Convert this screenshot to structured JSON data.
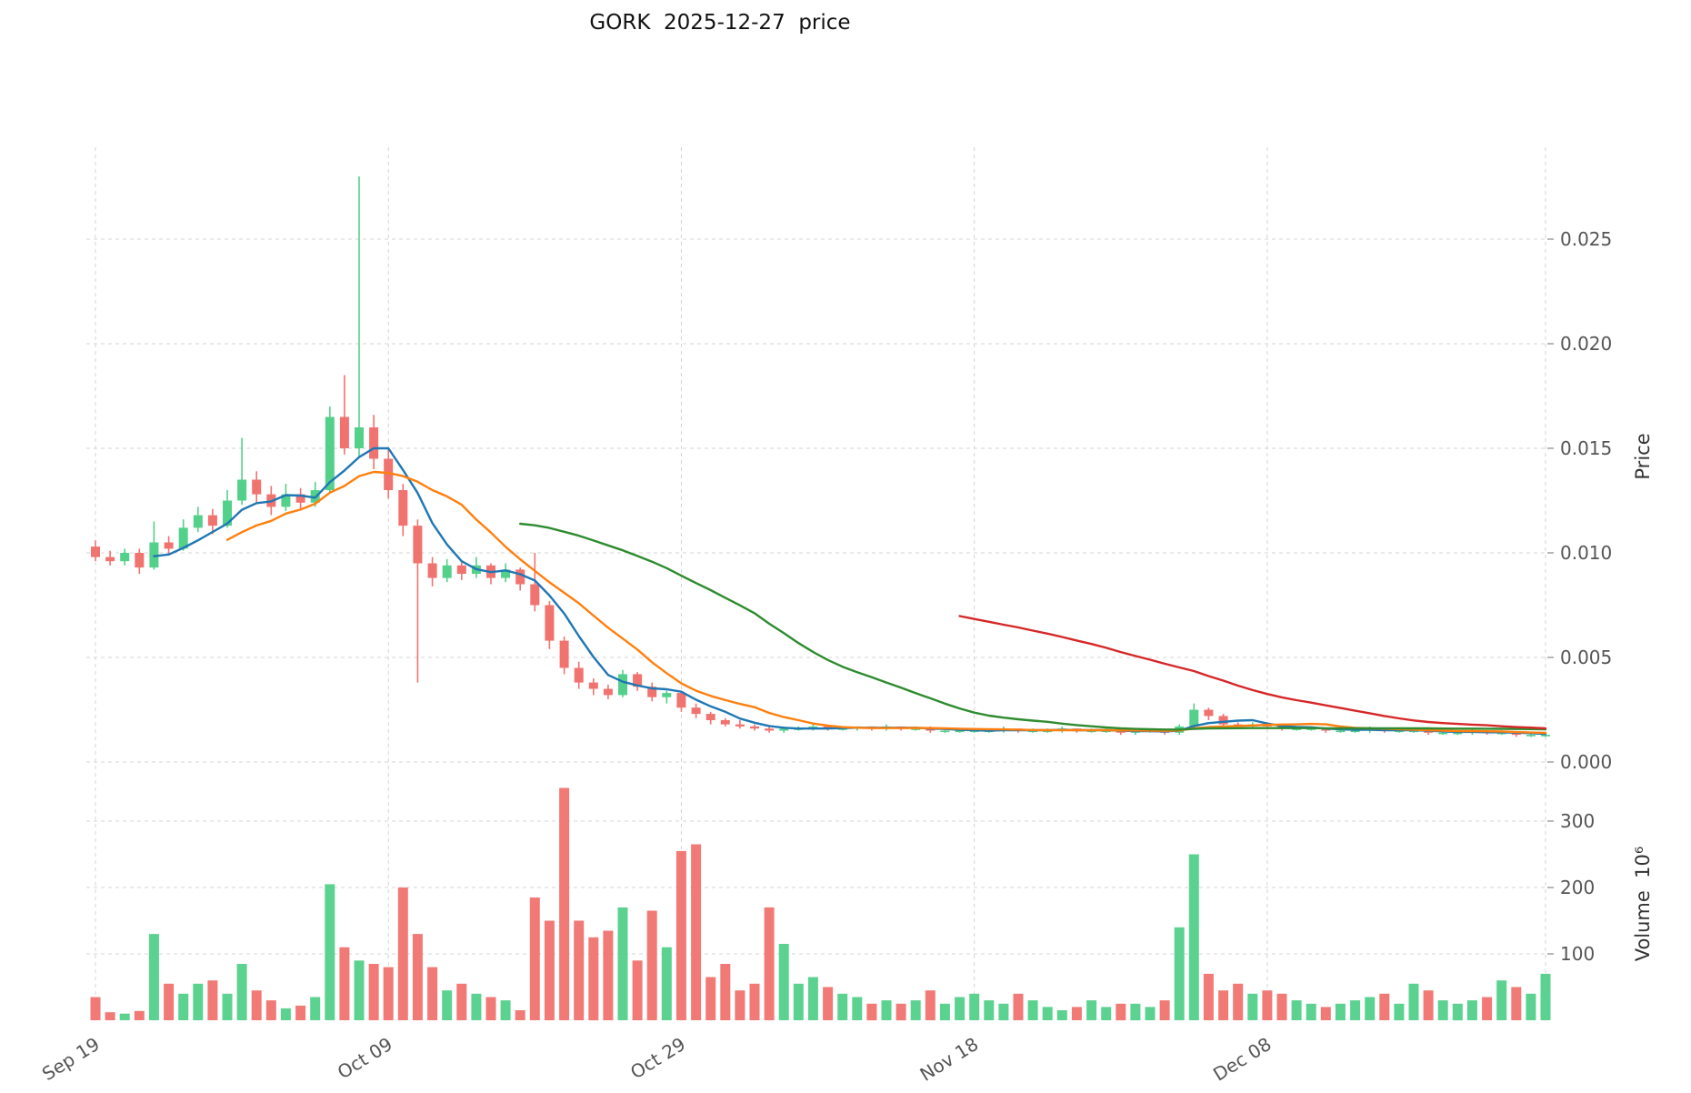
{
  "chart_data": {
    "type": "candlestick",
    "title": "GORK  2025-12-27  price",
    "ylabel_price": "Price",
    "ylabel_volume": "Volume  10⁶",
    "x_tick_labels": [
      "Sep 19",
      "Oct 09",
      "Oct 29",
      "Nov 18",
      "Dec 08"
    ],
    "x_tick_indices": [
      0,
      20,
      40,
      60,
      80
    ],
    "price_tick_values": [
      0.0,
      0.005,
      0.01,
      0.015,
      0.02,
      0.025
    ],
    "price_tick_labels": [
      "0.000",
      "0.005",
      "0.010",
      "0.015",
      "0.020",
      "0.025"
    ],
    "volume_tick_values": [
      100,
      200,
      300
    ],
    "volume_tick_labels": [
      "100",
      "200",
      "300"
    ],
    "ylim_price": [
      0.0,
      0.0295
    ],
    "volume_unit": "1e6",
    "num_candles": 100,
    "colors": {
      "up": "#53d08a",
      "down": "#f0736f"
    },
    "moving_averages": [
      {
        "name": "SMA5",
        "window": 5,
        "color": "#1f77b4"
      },
      {
        "name": "SMA10",
        "window": 10,
        "color": "#ff7f0e"
      },
      {
        "name": "SMA30",
        "window": 30,
        "color": "#2f8b2f"
      },
      {
        "name": "SMA60",
        "window": 60,
        "color": "#d62728"
      }
    ],
    "ohlc": [
      [
        0.0103,
        0.0106,
        0.0096,
        0.0098
      ],
      [
        0.0098,
        0.0101,
        0.0094,
        0.0096
      ],
      [
        0.0096,
        0.0102,
        0.0094,
        0.01
      ],
      [
        0.01,
        0.0102,
        0.009,
        0.0093
      ],
      [
        0.0093,
        0.0115,
        0.0092,
        0.0105
      ],
      [
        0.0105,
        0.0108,
        0.0099,
        0.0102
      ],
      [
        0.0102,
        0.0116,
        0.0101,
        0.0112
      ],
      [
        0.0112,
        0.0122,
        0.011,
        0.0118
      ],
      [
        0.0118,
        0.0121,
        0.0109,
        0.0113
      ],
      [
        0.0113,
        0.013,
        0.0112,
        0.0125
      ],
      [
        0.0125,
        0.0155,
        0.0123,
        0.0135
      ],
      [
        0.0135,
        0.0139,
        0.0124,
        0.0128
      ],
      [
        0.0128,
        0.0132,
        0.0118,
        0.0122
      ],
      [
        0.0122,
        0.0133,
        0.012,
        0.0128
      ],
      [
        0.0128,
        0.0131,
        0.0121,
        0.0124
      ],
      [
        0.0124,
        0.0134,
        0.0122,
        0.013
      ],
      [
        0.013,
        0.017,
        0.0129,
        0.0165
      ],
      [
        0.0165,
        0.0185,
        0.0147,
        0.015
      ],
      [
        0.015,
        0.028,
        0.0146,
        0.016
      ],
      [
        0.016,
        0.0166,
        0.014,
        0.0145
      ],
      [
        0.0145,
        0.015,
        0.0126,
        0.013
      ],
      [
        0.013,
        0.0133,
        0.0108,
        0.0113
      ],
      [
        0.0113,
        0.0116,
        0.0038,
        0.0095
      ],
      [
        0.0095,
        0.0098,
        0.0084,
        0.0088
      ],
      [
        0.0088,
        0.0097,
        0.0086,
        0.0094
      ],
      [
        0.0094,
        0.0096,
        0.0087,
        0.009
      ],
      [
        0.009,
        0.0098,
        0.0088,
        0.0094
      ],
      [
        0.0094,
        0.0095,
        0.0085,
        0.0088
      ],
      [
        0.0088,
        0.0095,
        0.0086,
        0.0092
      ],
      [
        0.0092,
        0.0093,
        0.0082,
        0.0085
      ],
      [
        0.0085,
        0.01,
        0.0072,
        0.0075
      ],
      [
        0.0075,
        0.0077,
        0.0054,
        0.0058
      ],
      [
        0.0058,
        0.006,
        0.0042,
        0.0045
      ],
      [
        0.0045,
        0.0048,
        0.0035,
        0.0038
      ],
      [
        0.0038,
        0.004,
        0.0032,
        0.0035
      ],
      [
        0.0035,
        0.0037,
        0.003,
        0.0032
      ],
      [
        0.0032,
        0.0044,
        0.0031,
        0.0042
      ],
      [
        0.0042,
        0.0043,
        0.0034,
        0.0036
      ],
      [
        0.0036,
        0.0038,
        0.0029,
        0.0031
      ],
      [
        0.0031,
        0.0034,
        0.0028,
        0.0033
      ],
      [
        0.0033,
        0.0034,
        0.0024,
        0.0026
      ],
      [
        0.0026,
        0.0028,
        0.0021,
        0.0023
      ],
      [
        0.0023,
        0.0024,
        0.0018,
        0.002
      ],
      [
        0.002,
        0.0021,
        0.0017,
        0.0018
      ],
      [
        0.0018,
        0.002,
        0.0016,
        0.0017
      ],
      [
        0.0017,
        0.0018,
        0.0015,
        0.0016
      ],
      [
        0.0016,
        0.0017,
        0.0014,
        0.0015
      ],
      [
        0.0015,
        0.0017,
        0.0014,
        0.0016
      ],
      [
        0.0016,
        0.0017,
        0.0015,
        0.0016
      ],
      [
        0.0016,
        0.0018,
        0.0015,
        0.0017
      ],
      [
        0.0017,
        0.0017,
        0.0015,
        0.0016
      ],
      [
        0.0016,
        0.0017,
        0.0015,
        0.0016
      ],
      [
        0.0016,
        0.0017,
        0.0015,
        0.0017
      ],
      [
        0.0017,
        0.0017,
        0.0015,
        0.0016
      ],
      [
        0.0016,
        0.0018,
        0.0015,
        0.0017
      ],
      [
        0.0017,
        0.0017,
        0.0015,
        0.0016
      ],
      [
        0.0016,
        0.0017,
        0.0015,
        0.0016
      ],
      [
        0.0016,
        0.0017,
        0.0014,
        0.0015
      ],
      [
        0.0015,
        0.0016,
        0.0014,
        0.0015
      ],
      [
        0.0015,
        0.0016,
        0.0014,
        0.0015
      ],
      [
        0.0015,
        0.0016,
        0.0014,
        0.0015
      ],
      [
        0.0015,
        0.0016,
        0.0014,
        0.0015
      ],
      [
        0.0015,
        0.0017,
        0.0014,
        0.0016
      ],
      [
        0.0016,
        0.0016,
        0.0014,
        0.0015
      ],
      [
        0.0015,
        0.0016,
        0.0014,
        0.0015
      ],
      [
        0.0015,
        0.0016,
        0.0014,
        0.0015
      ],
      [
        0.0015,
        0.0017,
        0.0014,
        0.0016
      ],
      [
        0.0016,
        0.0016,
        0.0014,
        0.0015
      ],
      [
        0.0015,
        0.0016,
        0.0014,
        0.0015
      ],
      [
        0.0015,
        0.0016,
        0.0014,
        0.0015
      ],
      [
        0.0015,
        0.0015,
        0.0013,
        0.0014
      ],
      [
        0.0014,
        0.0016,
        0.0013,
        0.0015
      ],
      [
        0.0015,
        0.0016,
        0.0014,
        0.0015
      ],
      [
        0.0015,
        0.0016,
        0.0013,
        0.0014
      ],
      [
        0.0014,
        0.0018,
        0.0013,
        0.0017
      ],
      [
        0.0017,
        0.0028,
        0.0016,
        0.0025
      ],
      [
        0.0025,
        0.0026,
        0.002,
        0.0022
      ],
      [
        0.0022,
        0.0023,
        0.0017,
        0.0018
      ],
      [
        0.0018,
        0.0019,
        0.0016,
        0.0017
      ],
      [
        0.0017,
        0.0019,
        0.0016,
        0.0018
      ],
      [
        0.0018,
        0.0019,
        0.0016,
        0.0017
      ],
      [
        0.0017,
        0.0018,
        0.0015,
        0.0016
      ],
      [
        0.0016,
        0.0017,
        0.0015,
        0.0016
      ],
      [
        0.0016,
        0.0017,
        0.0015,
        0.0016
      ],
      [
        0.0016,
        0.0016,
        0.0014,
        0.0015
      ],
      [
        0.0015,
        0.0016,
        0.0014,
        0.0015
      ],
      [
        0.0015,
        0.0016,
        0.0014,
        0.0015
      ],
      [
        0.0015,
        0.0017,
        0.0014,
        0.0016
      ],
      [
        0.0016,
        0.0016,
        0.0014,
        0.0015
      ],
      [
        0.0015,
        0.0016,
        0.0014,
        0.0015
      ],
      [
        0.0015,
        0.0016,
        0.0014,
        0.0015
      ],
      [
        0.0015,
        0.0015,
        0.0013,
        0.0014
      ],
      [
        0.0014,
        0.0015,
        0.0013,
        0.0014
      ],
      [
        0.0014,
        0.0015,
        0.0013,
        0.0014
      ],
      [
        0.0014,
        0.0016,
        0.0013,
        0.0015
      ],
      [
        0.0015,
        0.0015,
        0.0013,
        0.0014
      ],
      [
        0.0014,
        0.0015,
        0.0013,
        0.0014
      ],
      [
        0.0014,
        0.0014,
        0.0012,
        0.0013
      ],
      [
        0.0013,
        0.0014,
        0.0012,
        0.0013
      ],
      [
        0.0013,
        0.0014,
        0.0012,
        0.0013
      ]
    ],
    "volume": [
      35,
      12,
      10,
      14,
      130,
      55,
      40,
      55,
      60,
      40,
      85,
      45,
      30,
      18,
      22,
      35,
      205,
      110,
      90,
      85,
      80,
      200,
      130,
      80,
      45,
      55,
      40,
      35,
      30,
      15,
      185,
      150,
      350,
      150,
      125,
      135,
      170,
      90,
      165,
      110,
      255,
      265,
      65,
      85,
      45,
      55,
      170,
      115,
      55,
      65,
      50,
      40,
      35,
      25,
      30,
      25,
      30,
      45,
      25,
      35,
      40,
      30,
      25,
      40,
      30,
      20,
      15,
      20,
      30,
      20,
      25,
      25,
      20,
      30,
      140,
      250,
      70,
      45,
      55,
      40,
      45,
      40,
      30,
      25,
      20,
      25,
      30,
      35,
      40,
      25,
      55,
      45,
      30,
      25,
      30,
      35,
      60,
      50,
      40,
      70
    ]
  }
}
